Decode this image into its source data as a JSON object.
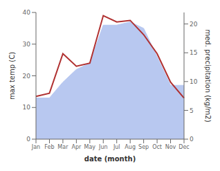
{
  "chart_data": {
    "type": "line",
    "categories": [
      "Jan",
      "Feb",
      "Mar",
      "Apr",
      "May",
      "Jun",
      "Jul",
      "Aug",
      "Sep",
      "Oct",
      "Nov",
      "Dec"
    ],
    "series": [
      {
        "type": "area",
        "color": "#b8c8f0",
        "values": [
          13,
          13,
          18,
          22,
          24,
          36,
          36,
          37,
          35,
          26,
          17,
          17
        ]
      },
      {
        "type": "line",
        "color": "#b03030",
        "values": [
          13.5,
          14.5,
          27,
          23,
          24,
          39,
          37,
          37.5,
          33,
          27,
          18,
          13
        ]
      }
    ],
    "xlabel": "date (month)",
    "ylabel": "max temp (C)",
    "y2label": "med. precipitation (kg/m2)",
    "ylim": [
      0,
      40
    ],
    "yticks": [
      0,
      10,
      20,
      30,
      40
    ],
    "y2lim": [
      0,
      22
    ],
    "y2ticks": [
      0,
      5,
      10,
      15,
      20
    ],
    "grid": false
  }
}
